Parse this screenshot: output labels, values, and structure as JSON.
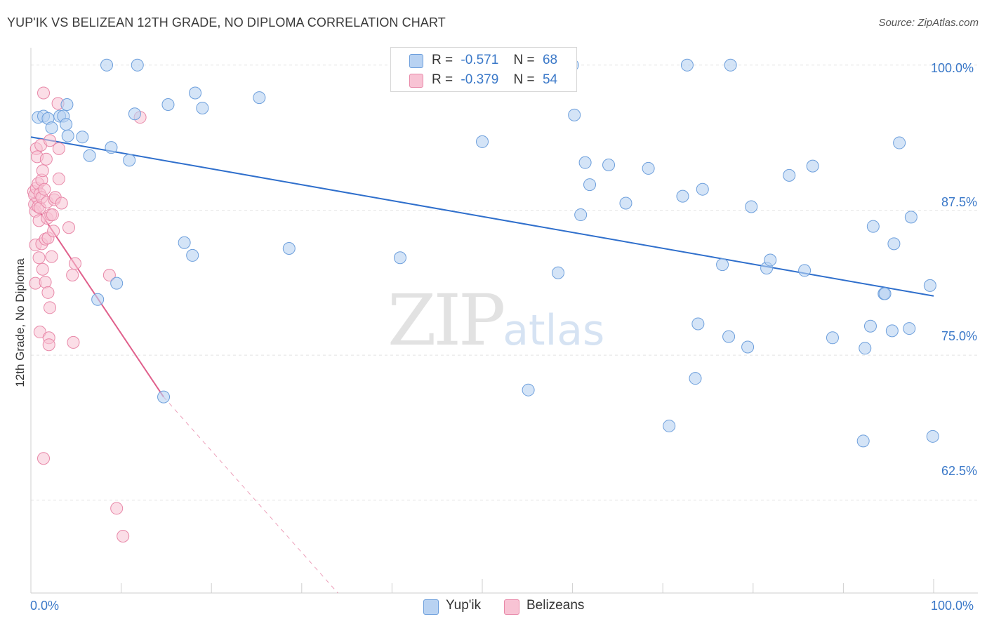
{
  "header": {
    "title": "YUP'IK VS BELIZEAN 12TH GRADE, NO DIPLOMA CORRELATION CHART",
    "source": "Source: ZipAtlas.com"
  },
  "legend": {
    "yupik": {
      "r_label": "R =",
      "r_value": "-0.571",
      "n_label": "N =",
      "n_value": "68"
    },
    "belizeans": {
      "r_label": "R =",
      "r_value": "-0.379",
      "n_label": "N =",
      "n_value": "54"
    }
  },
  "bottom_legend": {
    "yupik": "Yup'ik",
    "belizeans": "Belizeans"
  },
  "watermark": {
    "zip": "ZIP",
    "atlas": "atlas"
  },
  "colors": {
    "yupik_fill": "#b8d2f2",
    "yupik_stroke": "#6d9fdc",
    "yupik_line": "#2f6fcc",
    "belize_fill": "#f8c3d4",
    "belize_stroke": "#e888a8",
    "belize_line": "#e0608c",
    "grid": "#e4e4e4",
    "axis_label": "#3a78c8"
  },
  "chart_data": {
    "type": "scatter",
    "title": "YUP'IK VS BELIZEAN 12TH GRADE, NO DIPLOMA CORRELATION CHART",
    "xlabel": "",
    "ylabel": "12th Grade, No Diploma",
    "xlim": [
      0,
      100
    ],
    "ylim": [
      54.5,
      101.5
    ],
    "x_tick_labels": [
      "0.0%",
      "100.0%"
    ],
    "y_ticks": [
      {
        "value": 100,
        "label": "100.0%"
      },
      {
        "value": 87.5,
        "label": "87.5%"
      },
      {
        "value": 75,
        "label": "75.0%"
      },
      {
        "value": 62.5,
        "label": "62.5%"
      }
    ],
    "series": [
      {
        "name": "Yup'ik",
        "R": -0.571,
        "N": 68,
        "trend": {
          "x0": 0,
          "y0": 93.8,
          "x1": 100,
          "y1": 80.1
        },
        "points": [
          [
            0.8,
            95.5
          ],
          [
            1.4,
            95.6
          ],
          [
            1.9,
            95.4
          ],
          [
            2.3,
            94.6
          ],
          [
            3.2,
            95.6
          ],
          [
            3.6,
            95.6
          ],
          [
            3.9,
            94.9
          ],
          [
            4.0,
            96.6
          ],
          [
            4.1,
            93.9
          ],
          [
            5.7,
            93.8
          ],
          [
            6.5,
            92.2
          ],
          [
            7.4,
            79.8
          ],
          [
            8.4,
            100
          ],
          [
            8.9,
            92.9
          ],
          [
            9.5,
            81.2
          ],
          [
            10.9,
            91.8
          ],
          [
            11.8,
            100
          ],
          [
            11.5,
            95.8
          ],
          [
            14.7,
            71.4
          ],
          [
            15.2,
            96.6
          ],
          [
            17.0,
            84.7
          ],
          [
            17.9,
            83.6
          ],
          [
            18.2,
            97.6
          ],
          [
            19.0,
            96.3
          ],
          [
            25.3,
            97.2
          ],
          [
            28.6,
            84.2
          ],
          [
            40.9,
            83.4
          ],
          [
            50.0,
            93.4
          ],
          [
            55.1,
            72.0
          ],
          [
            58.4,
            82.1
          ],
          [
            60.2,
            95.7
          ],
          [
            60.9,
            87.1
          ],
          [
            61.4,
            91.6
          ],
          [
            61.9,
            89.7
          ],
          [
            64.0,
            91.4
          ],
          [
            65.9,
            88.1
          ],
          [
            68.4,
            91.1
          ],
          [
            70.7,
            68.9
          ],
          [
            72.2,
            88.7
          ],
          [
            73.6,
            73.0
          ],
          [
            73.9,
            77.7
          ],
          [
            74.4,
            89.3
          ],
          [
            76.6,
            82.8
          ],
          [
            77.3,
            76.6
          ],
          [
            79.4,
            75.7
          ],
          [
            79.8,
            87.8
          ],
          [
            81.5,
            82.5
          ],
          [
            81.9,
            83.2
          ],
          [
            84.0,
            90.5
          ],
          [
            85.7,
            82.3
          ],
          [
            86.6,
            91.3
          ],
          [
            88.8,
            76.5
          ],
          [
            92.2,
            67.6
          ],
          [
            92.4,
            75.6
          ],
          [
            93.0,
            77.5
          ],
          [
            93.3,
            86.1
          ],
          [
            94.5,
            80.3
          ],
          [
            94.6,
            80.3
          ],
          [
            95.4,
            77.1
          ],
          [
            95.6,
            84.6
          ],
          [
            96.2,
            93.3
          ],
          [
            97.3,
            77.3
          ],
          [
            97.5,
            86.9
          ],
          [
            99.6,
            81.0
          ],
          [
            99.9,
            68.0
          ],
          [
            72.7,
            100
          ],
          [
            77.5,
            100
          ],
          [
            60.0,
            100
          ]
        ]
      },
      {
        "name": "Belizeans",
        "R": -0.379,
        "N": 54,
        "trend": {
          "x0": 0,
          "y0": 88.5,
          "x1": 14.7,
          "y1": 71.4,
          "dashed_to": {
            "x": 34,
            "y": 54.5
          }
        },
        "points": [
          [
            0.3,
            89.1
          ],
          [
            0.4,
            88.8
          ],
          [
            0.4,
            88.0
          ],
          [
            0.5,
            87.4
          ],
          [
            0.5,
            84.5
          ],
          [
            0.5,
            81.2
          ],
          [
            0.6,
            92.8
          ],
          [
            0.6,
            89.4
          ],
          [
            0.7,
            92.1
          ],
          [
            0.8,
            89.8
          ],
          [
            0.8,
            87.8
          ],
          [
            0.9,
            86.6
          ],
          [
            0.9,
            83.4
          ],
          [
            1.0,
            88.9
          ],
          [
            1.0,
            87.7
          ],
          [
            1.0,
            77.0
          ],
          [
            1.1,
            93.1
          ],
          [
            1.2,
            90.1
          ],
          [
            1.2,
            88.6
          ],
          [
            1.2,
            84.6
          ],
          [
            1.3,
            90.9
          ],
          [
            1.3,
            82.4
          ],
          [
            1.4,
            97.6
          ],
          [
            1.4,
            66.1
          ],
          [
            1.5,
            89.3
          ],
          [
            1.6,
            85.0
          ],
          [
            1.6,
            81.3
          ],
          [
            1.7,
            91.9
          ],
          [
            1.8,
            88.2
          ],
          [
            1.8,
            86.8
          ],
          [
            1.9,
            85.1
          ],
          [
            1.9,
            80.4
          ],
          [
            2.0,
            76.5
          ],
          [
            2.0,
            75.9
          ],
          [
            2.1,
            93.5
          ],
          [
            2.1,
            79.1
          ],
          [
            2.2,
            87.1
          ],
          [
            2.3,
            83.5
          ],
          [
            2.4,
            87.1
          ],
          [
            2.5,
            85.7
          ],
          [
            2.6,
            88.4
          ],
          [
            2.7,
            88.6
          ],
          [
            3.0,
            96.7
          ],
          [
            3.1,
            92.8
          ],
          [
            3.1,
            90.2
          ],
          [
            3.4,
            88.1
          ],
          [
            4.6,
            81.9
          ],
          [
            4.7,
            76.1
          ],
          [
            4.9,
            82.9
          ],
          [
            8.7,
            81.9
          ],
          [
            9.5,
            61.8
          ],
          [
            10.2,
            59.4
          ],
          [
            12.1,
            95.5
          ],
          [
            4.2,
            86.0
          ]
        ]
      }
    ]
  }
}
